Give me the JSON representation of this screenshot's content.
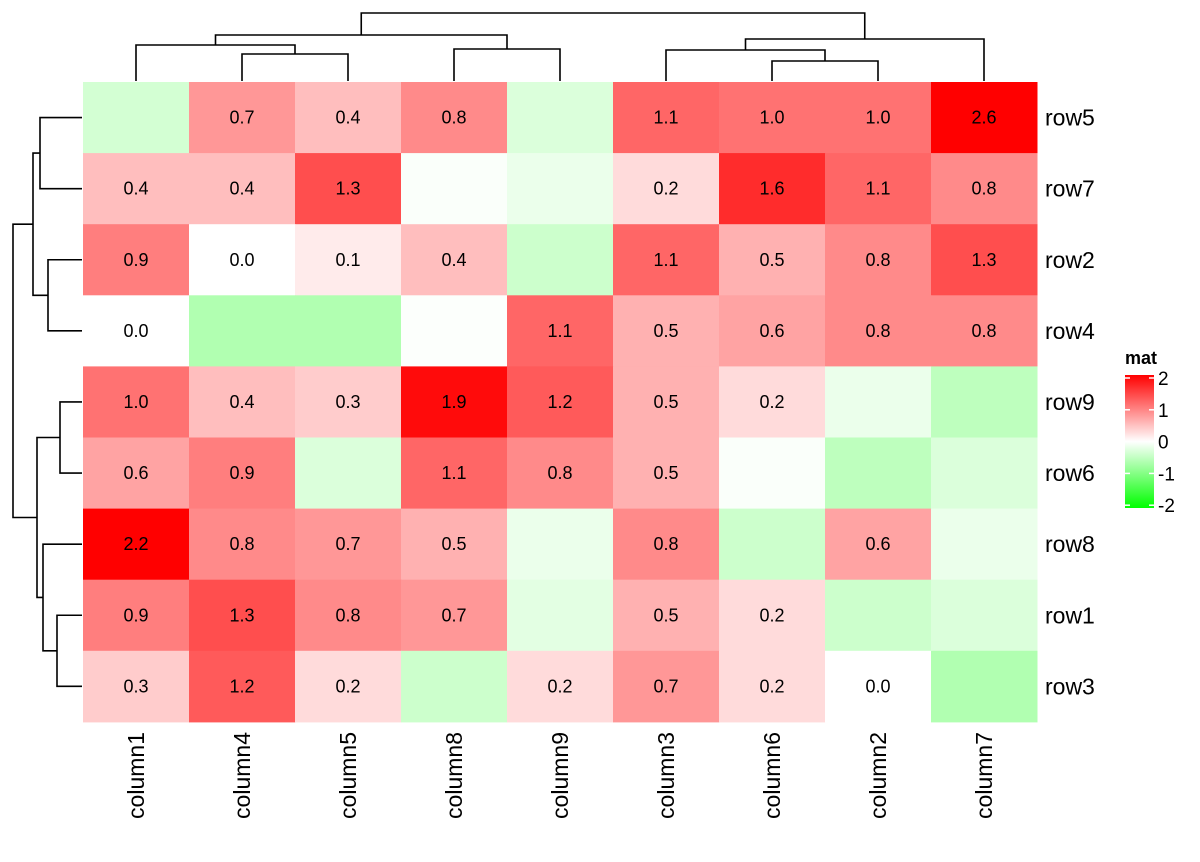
{
  "chart_data": {
    "type": "heatmap",
    "title": "",
    "columns": [
      "column1",
      "column4",
      "column5",
      "column8",
      "column9",
      "column3",
      "column6",
      "column2",
      "column7"
    ],
    "rows": [
      "row5",
      "row7",
      "row2",
      "row4",
      "row9",
      "row6",
      "row8",
      "row1",
      "row3"
    ],
    "values": [
      [
        -0.25,
        0.7,
        0.4,
        0.8,
        -0.2,
        1.1,
        1.0,
        1.0,
        2.6
      ],
      [
        0.4,
        0.4,
        1.3,
        -0.02,
        -0.1,
        0.2,
        1.6,
        1.1,
        0.8
      ],
      [
        0.9,
        0.0,
        0.1,
        0.4,
        -0.3,
        1.1,
        0.5,
        0.8,
        1.3
      ],
      [
        0.0,
        -0.5,
        -0.5,
        -0.01,
        1.1,
        0.5,
        0.6,
        0.8,
        0.8
      ],
      [
        1.0,
        0.4,
        0.3,
        1.9,
        1.2,
        0.5,
        0.2,
        -0.1,
        -0.4
      ],
      [
        0.6,
        0.9,
        -0.2,
        1.1,
        0.8,
        0.5,
        -0.02,
        -0.4,
        -0.2
      ],
      [
        2.2,
        0.8,
        0.7,
        0.5,
        -0.1,
        0.8,
        -0.3,
        0.6,
        -0.1
      ],
      [
        0.9,
        1.3,
        0.8,
        0.7,
        -0.15,
        0.5,
        0.2,
        -0.3,
        -0.2
      ],
      [
        0.3,
        1.2,
        0.2,
        -0.3,
        0.2,
        0.7,
        0.2,
        0.0,
        -0.5
      ]
    ],
    "cell_labels": "shown for values >= 0, one decimal",
    "color_scale": {
      "breaks": [
        -2,
        0,
        2
      ],
      "colors": [
        "#00ff00",
        "#ffffff",
        "#ff0000"
      ]
    },
    "legend": {
      "title": "mat",
      "ticks": [
        "2",
        "1",
        "0",
        "-1",
        "-2"
      ],
      "position": "right"
    },
    "column_dendrogram": {
      "position": "top",
      "merges": [
        {
          "left": "column4",
          "right": "column5",
          "height": 27
        },
        {
          "left": "column8",
          "right": "column9",
          "height": 32
        },
        {
          "left": "column6",
          "right": "column2",
          "height": 20
        },
        {
          "left": "column1",
          "right": "column4+column5",
          "height": 36
        },
        {
          "left": "column3",
          "right": "column6+column2",
          "height": 31
        },
        {
          "left": "column1+column4+column5",
          "right": "column8+column9",
          "height": 46
        },
        {
          "left": "column3+column6+column2",
          "right": "column7",
          "height": 42
        },
        {
          "left": "left-cluster",
          "right": "right-cluster",
          "height": 68
        }
      ]
    },
    "row_dendrogram": {
      "position": "left",
      "merges": [
        {
          "left": "row5",
          "right": "row7",
          "height": 42
        },
        {
          "left": "row2",
          "right": "row4",
          "height": 34
        },
        {
          "left": "row5+row7",
          "right": "row2+row4",
          "height": 49
        },
        {
          "left": "row9",
          "right": "row6",
          "height": 22
        },
        {
          "left": "row1",
          "right": "row3",
          "height": 25
        },
        {
          "left": "row8",
          "right": "row1+row3",
          "height": 39
        },
        {
          "left": "row9+row6",
          "right": "row8+row1+row3",
          "height": 45
        },
        {
          "left": "top-cluster",
          "right": "bottom-cluster",
          "height": 69
        }
      ]
    }
  }
}
